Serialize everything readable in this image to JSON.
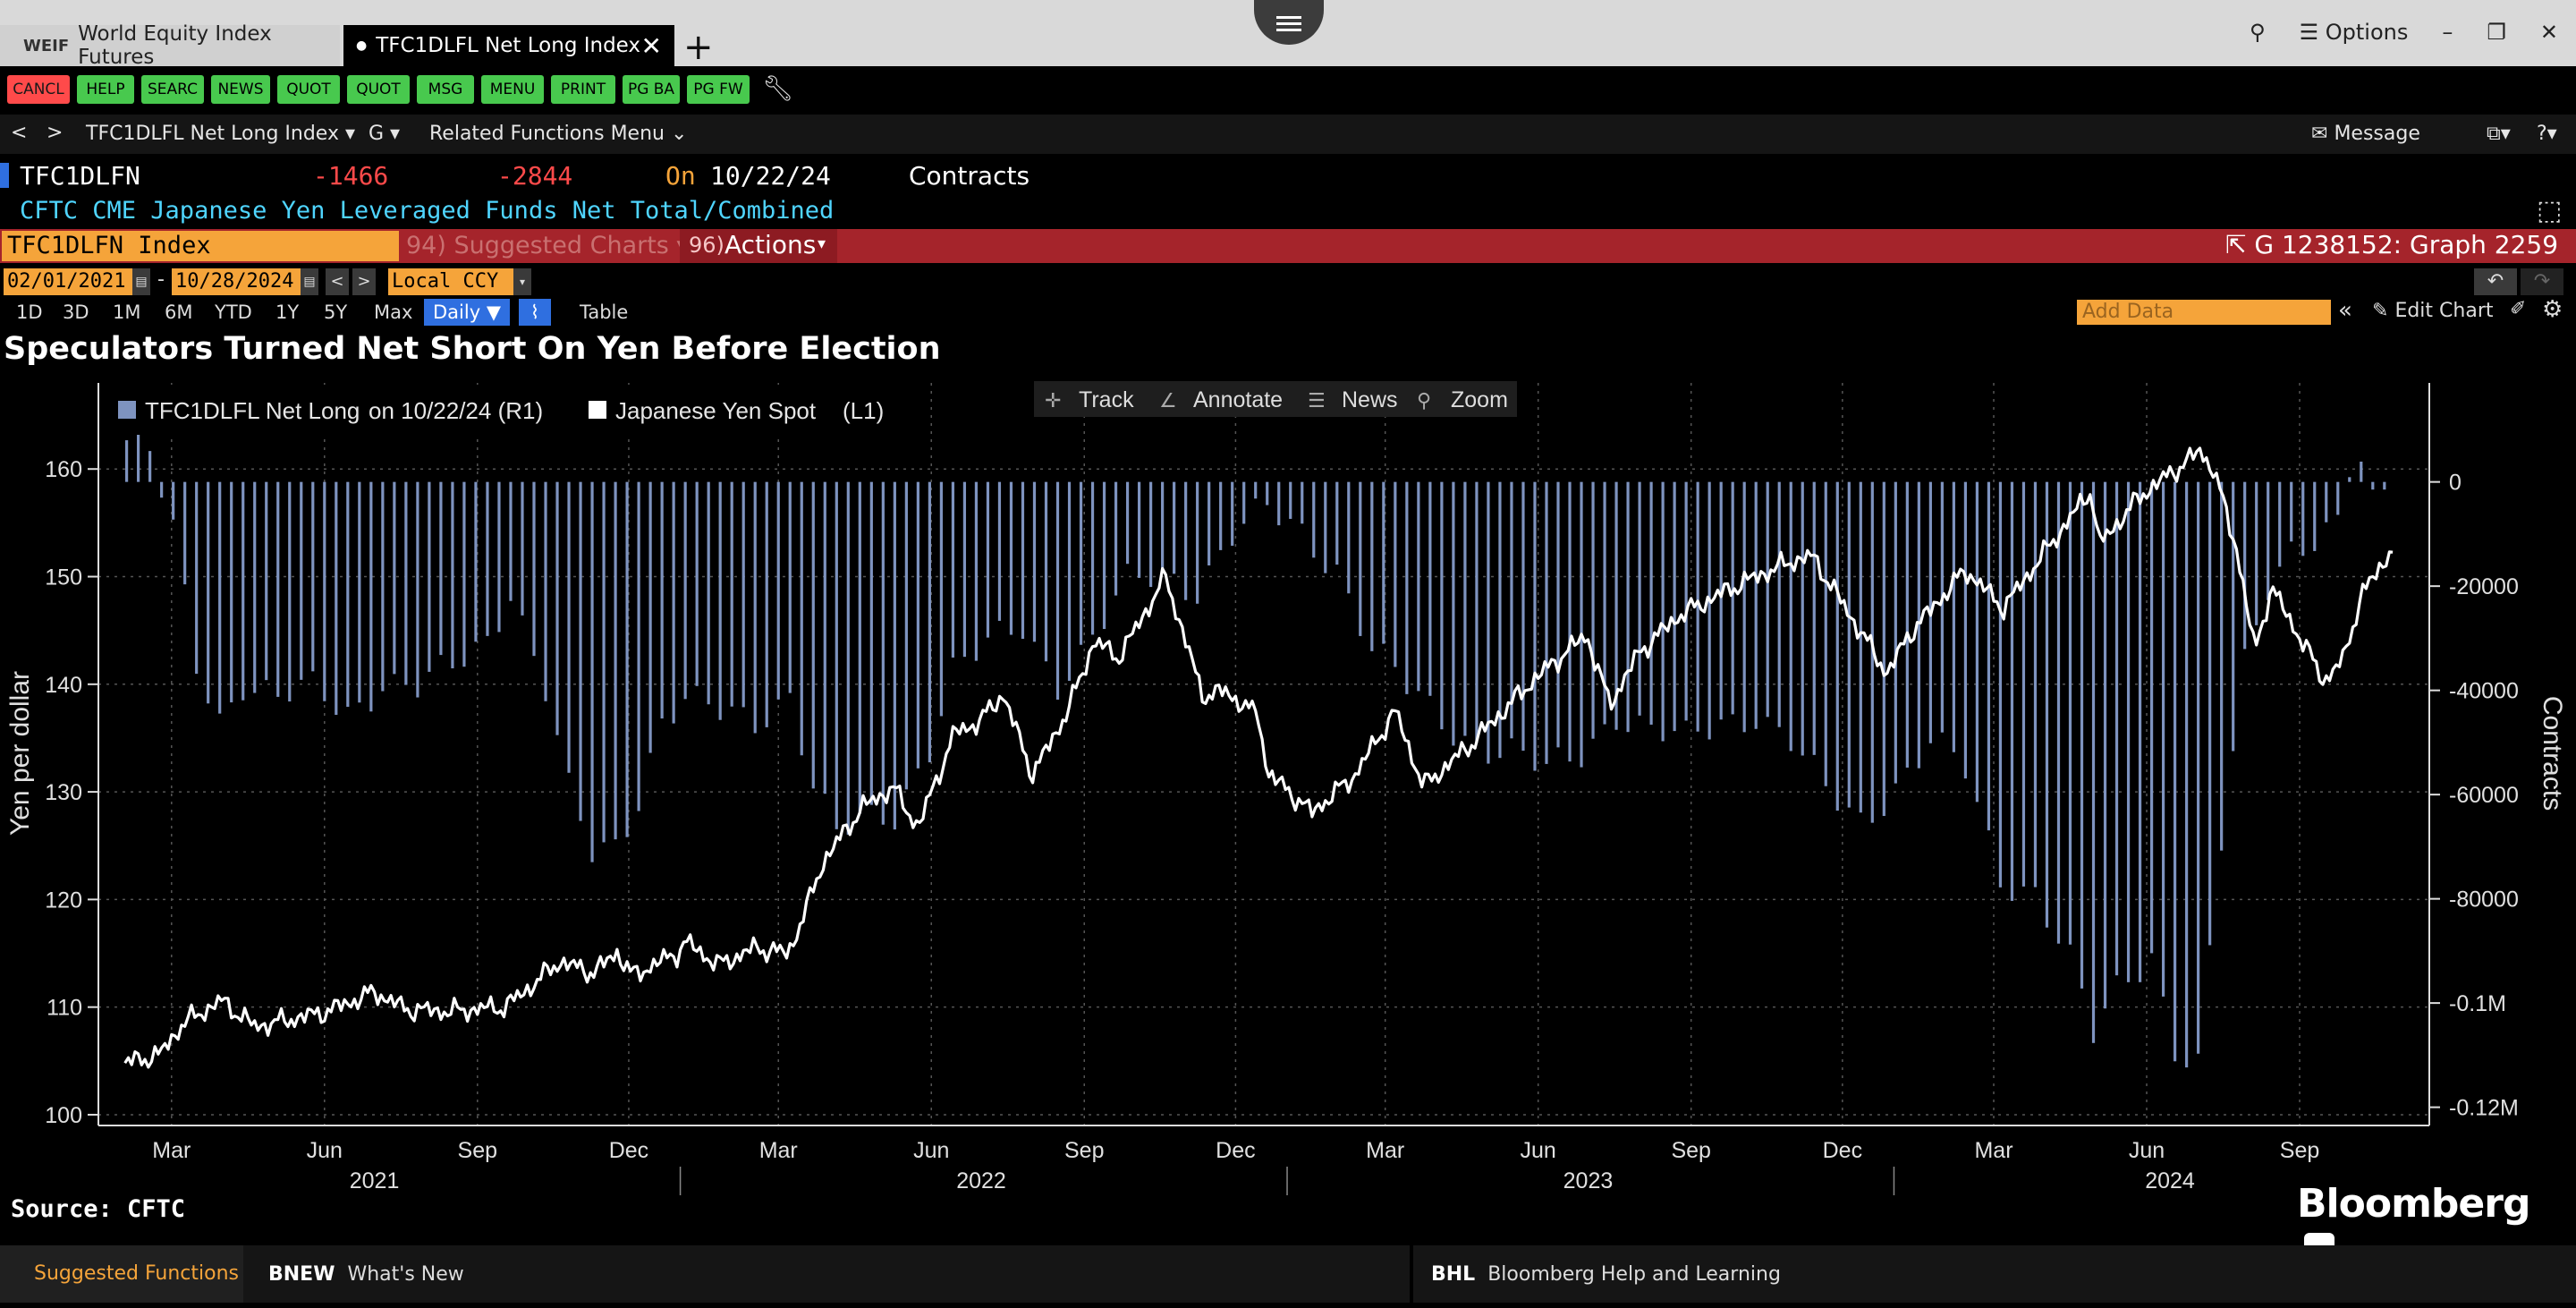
{
  "tabs": [
    {
      "code": "WEIF",
      "label": "World Equity Index Futures"
    },
    {
      "label": "TFC1DLFL Net Long Index"
    }
  ],
  "window": {
    "options_label": "Options"
  },
  "function_keys": [
    "CANCL",
    "HELP",
    "SEARC",
    "NEWS",
    "QUOT",
    "QUOT",
    "MSG",
    "MENU",
    "PRINT",
    "PG BA",
    "PG FW"
  ],
  "nav": {
    "security": "TFC1DLFL Net Long Index",
    "func": "G",
    "related": "Related Functions Menu",
    "message": "Message"
  },
  "security": {
    "ticker": "TFC1DLFN",
    "value1": "-1466",
    "value2": "-2844",
    "on_label": "On",
    "date": "10/22/24",
    "unit": "Contracts",
    "description": "CFTC CME Japanese Yen Leveraged Funds Net Total/Combined"
  },
  "command": {
    "input": "TFC1DLFN Index",
    "suggested": "94) Suggested Charts",
    "actions_num": "96)",
    "actions": "Actions",
    "graph_id": "G 1238152: Graph 2259"
  },
  "dates": {
    "start": "02/01/2021",
    "end": "10/28/2024",
    "currency": "Local CCY"
  },
  "ranges": [
    "1D",
    "3D",
    "1M",
    "6M",
    "YTD",
    "1Y",
    "5Y",
    "Max"
  ],
  "period": "Daily",
  "table_label": "Table",
  "add_data_placeholder": "Add Data",
  "edit_chart": "Edit Chart",
  "toolbar": [
    "Track",
    "Annotate",
    "News",
    "Zoom"
  ],
  "source": "Source: CFTC",
  "brand": "Bloomberg",
  "footer": {
    "suggested": "Suggested Functions",
    "bnew_code": "BNEW",
    "bnew": "What's New",
    "bhl_code": "BHL",
    "bhl": "Bloomberg Help and Learning"
  },
  "colors": {
    "bars": "#7e93bf",
    "line": "#ffffff",
    "accent": "#f5a43a",
    "bar_red": "#a5242b"
  },
  "chart_data": {
    "type": "bar+line",
    "title": "Speculators Turned Net Short On Yen Before Election",
    "left_axis": {
      "label": "Yen per dollar",
      "ticks": [
        100,
        110,
        120,
        130,
        140,
        150,
        160
      ],
      "range": [
        99,
        168
      ]
    },
    "right_axis": {
      "label": "Contracts",
      "ticks": [
        0,
        -20000,
        -40000,
        -60000,
        -80000,
        -100000,
        -120000
      ],
      "tick_labels": [
        "0",
        "-20000",
        "-40000",
        "-60000",
        "-80000",
        "-0.1M",
        "-0.12M"
      ],
      "range": [
        -123500,
        19000
      ]
    },
    "x_ticks": [
      {
        "label": "Mar",
        "date": "2021-03-01"
      },
      {
        "label": "Jun",
        "date": "2021-06-01"
      },
      {
        "label": "Sep",
        "date": "2021-09-01"
      },
      {
        "label": "Dec",
        "date": "2021-12-01"
      },
      {
        "label": "Mar",
        "date": "2022-03-01"
      },
      {
        "label": "Jun",
        "date": "2022-06-01"
      },
      {
        "label": "Sep",
        "date": "2022-09-01"
      },
      {
        "label": "Dec",
        "date": "2022-12-01"
      },
      {
        "label": "Mar",
        "date": "2023-03-01"
      },
      {
        "label": "Jun",
        "date": "2023-06-01"
      },
      {
        "label": "Sep",
        "date": "2023-09-01"
      },
      {
        "label": "Dec",
        "date": "2023-12-01"
      },
      {
        "label": "Mar",
        "date": "2024-03-01"
      },
      {
        "label": "Jun",
        "date": "2024-06-01"
      },
      {
        "label": "Sep",
        "date": "2024-09-01"
      }
    ],
    "years": [
      {
        "label": "2021",
        "date": "2021-07-01"
      },
      {
        "label": "2022",
        "date": "2022-07-01"
      },
      {
        "label": "2023",
        "date": "2023-07-01"
      },
      {
        "label": "2024",
        "date": "2024-06-15"
      }
    ],
    "legend": [
      {
        "name": "TFC1DLFL Net Long",
        "note": "on 10/22/24 (R1)"
      },
      {
        "name": "Japanese Yen Spot",
        "note": "(L1)"
      }
    ],
    "series": [
      {
        "name": "Japanese Yen Spot",
        "axis": "left",
        "points": [
          [
            "2021-02-01",
            104.8
          ],
          [
            "2021-02-22",
            105.6
          ],
          [
            "2021-03-08",
            108.5
          ],
          [
            "2021-03-31",
            110.6
          ],
          [
            "2021-04-20",
            108.2
          ],
          [
            "2021-05-10",
            108.8
          ],
          [
            "2021-05-31",
            109.5
          ],
          [
            "2021-06-14",
            110.3
          ],
          [
            "2021-07-01",
            111.4
          ],
          [
            "2021-07-20",
            109.8
          ],
          [
            "2021-08-16",
            109.6
          ],
          [
            "2021-09-06",
            109.9
          ],
          [
            "2021-09-17",
            110.0
          ],
          [
            "2021-09-30",
            111.5
          ],
          [
            "2021-10-20",
            114.2
          ],
          [
            "2021-11-10",
            113.2
          ],
          [
            "2021-11-24",
            115.1
          ],
          [
            "2021-12-03",
            112.9
          ],
          [
            "2021-12-31",
            115.1
          ],
          [
            "2022-01-04",
            116.1
          ],
          [
            "2022-01-24",
            113.9
          ],
          [
            "2022-02-15",
            115.5
          ],
          [
            "2022-03-07",
            115.0
          ],
          [
            "2022-03-18",
            119.2
          ],
          [
            "2022-03-28",
            123.5
          ],
          [
            "2022-04-20",
            128.5
          ],
          [
            "2022-05-09",
            130.4
          ],
          [
            "2022-05-24",
            126.7
          ],
          [
            "2022-06-15",
            135.5
          ],
          [
            "2022-06-30",
            136.5
          ],
          [
            "2022-07-14",
            139.1
          ],
          [
            "2022-08-01",
            131.6
          ],
          [
            "2022-08-22",
            137.5
          ],
          [
            "2022-09-07",
            144.0
          ],
          [
            "2022-09-22",
            142.5
          ],
          [
            "2022-10-20",
            150.0
          ],
          [
            "2022-11-11",
            139.0
          ],
          [
            "2022-11-25",
            139.3
          ],
          [
            "2022-12-15",
            137.0
          ],
          [
            "2022-12-20",
            131.8
          ],
          [
            "2023-01-16",
            128.1
          ],
          [
            "2023-02-10",
            131.4
          ],
          [
            "2023-03-07",
            137.5
          ],
          [
            "2023-03-24",
            130.5
          ],
          [
            "2023-04-20",
            134.2
          ],
          [
            "2023-05-30",
            140.5
          ],
          [
            "2023-06-30",
            144.6
          ],
          [
            "2023-07-14",
            138.1
          ],
          [
            "2023-08-01",
            143.0
          ],
          [
            "2023-08-25",
            146.4
          ],
          [
            "2023-09-30",
            149.3
          ],
          [
            "2023-10-31",
            151.4
          ],
          [
            "2023-11-13",
            151.9
          ],
          [
            "2023-12-01",
            147.5
          ],
          [
            "2023-12-28",
            141.0
          ],
          [
            "2024-01-10",
            144.6
          ],
          [
            "2024-02-13",
            150.6
          ],
          [
            "2024-03-07",
            147.1
          ],
          [
            "2024-03-27",
            151.3
          ],
          [
            "2024-04-29",
            158.1
          ],
          [
            "2024-05-03",
            152.9
          ],
          [
            "2024-05-29",
            157.6
          ],
          [
            "2024-06-26",
            160.8
          ],
          [
            "2024-07-03",
            161.7
          ],
          [
            "2024-07-11",
            160.0
          ],
          [
            "2024-07-25",
            152.7
          ],
          [
            "2024-08-05",
            143.0
          ],
          [
            "2024-08-15",
            149.0
          ],
          [
            "2024-09-16",
            140.3
          ],
          [
            "2024-09-27",
            142.2
          ],
          [
            "2024-10-08",
            148.2
          ],
          [
            "2024-10-28",
            152.9
          ]
        ]
      },
      {
        "name": "TFC1DLFL Net Long",
        "axis": "right",
        "points": [
          [
            "2021-02-02",
            8000
          ],
          [
            "2021-02-16",
            5000
          ],
          [
            "2021-03-02",
            -10000
          ],
          [
            "2021-03-16",
            -35000
          ],
          [
            "2021-03-30",
            -45000
          ],
          [
            "2021-04-13",
            -38000
          ],
          [
            "2021-05-04",
            -42000
          ],
          [
            "2021-05-25",
            -40000
          ],
          [
            "2021-06-15",
            -44000
          ],
          [
            "2021-07-06",
            -38000
          ],
          [
            "2021-07-27",
            -40000
          ],
          [
            "2021-08-17",
            -36000
          ],
          [
            "2021-09-07",
            -30000
          ],
          [
            "2021-09-21",
            -20000
          ],
          [
            "2021-10-12",
            -40000
          ],
          [
            "2021-10-26",
            -60000
          ],
          [
            "2021-11-09",
            -72000
          ],
          [
            "2021-11-23",
            -70000
          ],
          [
            "2021-12-07",
            -60000
          ],
          [
            "2021-12-21",
            -45000
          ],
          [
            "2022-01-04",
            -42000
          ],
          [
            "2022-01-25",
            -45000
          ],
          [
            "2022-02-15",
            -46000
          ],
          [
            "2022-03-08",
            -40000
          ],
          [
            "2022-03-22",
            -58000
          ],
          [
            "2022-04-05",
            -68000
          ],
          [
            "2022-04-19",
            -66000
          ],
          [
            "2022-05-10",
            -64000
          ],
          [
            "2022-05-31",
            -50000
          ],
          [
            "2022-06-14",
            -36000
          ],
          [
            "2022-07-05",
            -32000
          ],
          [
            "2022-07-26",
            -28000
          ],
          [
            "2022-08-16",
            -38000
          ],
          [
            "2022-09-06",
            -30000
          ],
          [
            "2022-09-27",
            -20000
          ],
          [
            "2022-10-18",
            -18000
          ],
          [
            "2022-11-08",
            -20000
          ],
          [
            "2022-11-29",
            -10000
          ],
          [
            "2022-12-20",
            -6000
          ],
          [
            "2023-01-10",
            -10000
          ],
          [
            "2023-01-31",
            -16000
          ],
          [
            "2023-02-21",
            -32000
          ],
          [
            "2023-03-14",
            -40000
          ],
          [
            "2023-04-04",
            -46000
          ],
          [
            "2023-04-25",
            -50000
          ],
          [
            "2023-05-16",
            -52000
          ],
          [
            "2023-06-06",
            -56000
          ],
          [
            "2023-06-27",
            -52000
          ],
          [
            "2023-07-18",
            -44000
          ],
          [
            "2023-08-08",
            -48000
          ],
          [
            "2023-08-29",
            -50000
          ],
          [
            "2023-09-19",
            -46000
          ],
          [
            "2023-10-10",
            -44000
          ],
          [
            "2023-10-31",
            -50000
          ],
          [
            "2023-11-21",
            -60000
          ],
          [
            "2023-12-12",
            -65000
          ],
          [
            "2024-01-02",
            -58000
          ],
          [
            "2024-01-23",
            -50000
          ],
          [
            "2024-02-13",
            -56000
          ],
          [
            "2024-03-05",
            -76000
          ],
          [
            "2024-03-26",
            -78000
          ],
          [
            "2024-04-16",
            -92000
          ],
          [
            "2024-04-30",
            -107000
          ],
          [
            "2024-05-14",
            -98000
          ],
          [
            "2024-06-04",
            -90000
          ],
          [
            "2024-06-18",
            -108000
          ],
          [
            "2024-07-02",
            -112000
          ],
          [
            "2024-07-16",
            -70000
          ],
          [
            "2024-07-30",
            -36000
          ],
          [
            "2024-08-13",
            -20000
          ],
          [
            "2024-08-27",
            -12000
          ],
          [
            "2024-09-10",
            -10000
          ],
          [
            "2024-09-24",
            -8000
          ],
          [
            "2024-10-01",
            2000
          ],
          [
            "2024-10-08",
            3000
          ],
          [
            "2024-10-15",
            0
          ],
          [
            "2024-10-22",
            -1466
          ]
        ]
      }
    ]
  }
}
